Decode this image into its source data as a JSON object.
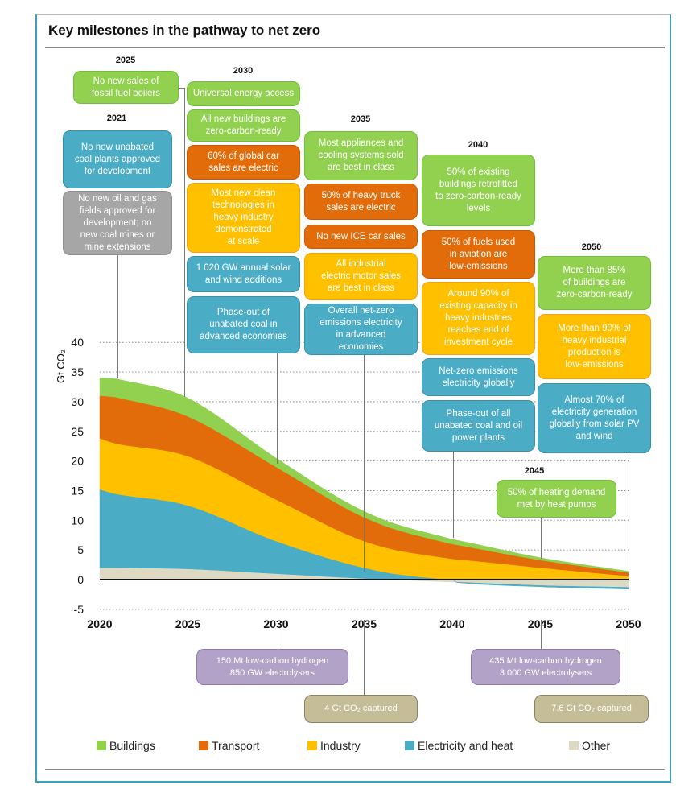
{
  "title": "Key milestones in the pathway to net zero",
  "milestones": {
    "y2021": {
      "year": "2021",
      "items": [
        "No new unabated\ncoal plants approved\nfor development",
        "No new oil and gas\nfields approved for\ndevelopment; no\nnew coal mines or\nmine extensions"
      ]
    },
    "y2025": {
      "year": "2025",
      "items": [
        "No new sales of\nfossil fuel boilers"
      ]
    },
    "y2030": {
      "year": "2030",
      "items": [
        "Universal energy access",
        "All new buildings are\nzero-carbon-ready",
        "60% of global car\nsales are electric",
        "Most new clean\ntechnologies in\nheavy industry\ndemonstrated\nat scale",
        "1 020 GW annual solar\nand wind additions",
        "Phase-out of\nunabated coal in\nadvanced economies"
      ]
    },
    "y2035": {
      "year": "2035",
      "items": [
        "Most appliances and\ncooling systems sold\nare best in class",
        "50% of heavy truck\nsales are electric",
        "No new ICE car sales",
        "All industrial\nelectric motor sales\nare best in class",
        "Overall net-zero\nemissions electricity\nin advanced\neconomies"
      ]
    },
    "y2040": {
      "year": "2040",
      "items": [
        "50% of existing\nbuildings retrofitted\nto zero-carbon-ready\nlevels",
        "50% of fuels used\nin aviation are\nlow-emissions",
        "Around 90% of\nexisting capacity in\nheavy industries\nreaches end of\ninvestment cycle",
        "Net-zero emissions\nelectricity globally",
        "Phase-out of all\nunabated coal and oil\npower plants"
      ]
    },
    "y2045": {
      "year": "2045",
      "items": [
        "50% of heating demand\nmet by heat pumps"
      ]
    },
    "y2050": {
      "year": "2050",
      "items": [
        "More than 85%\nof buildings are\nzero-carbon-ready",
        "More than 90% of\nheavy industrial\nproduction is\nlow-emissions",
        "Almost 70% of\nelectricity generation\nglobally from solar PV\nand wind"
      ]
    },
    "below": [
      "150 Mt low-carbon hydrogen\n850 GW electrolysers",
      "4 Gt CO₂ captured",
      "435 Mt low-carbon hydrogen\n3 000 GW electrolysers",
      "7.6 Gt CO₂ captured"
    ]
  },
  "colors": {
    "buildings": "#92d050",
    "transport": "#e36c0a",
    "industry": "#ffc000",
    "electricity": "#4bacc6",
    "other": "#ddd9c3",
    "fossil": "#a6a6a6",
    "hydrogen": "#b3a2c7",
    "ccus": "#c4bd97"
  },
  "chart_data": {
    "type": "area",
    "stacked": true,
    "ylabel": "Gt CO₂",
    "ylim": [
      -5,
      40
    ],
    "yticks": [
      "-5",
      "0",
      "5",
      "10",
      "15",
      "20",
      "25",
      "30",
      "35",
      "40"
    ],
    "xticks": [
      "2020",
      "2025",
      "2030",
      "2035",
      "2040",
      "2045",
      "2050"
    ],
    "grid": true,
    "legend_position": "bottom",
    "x": [
      2020,
      2021,
      2025,
      2030,
      2035,
      2040,
      2045,
      2050
    ],
    "series": [
      {
        "name": "Other",
        "color": "#ddd9c3",
        "values": [
          2.0,
          2.0,
          1.8,
          1.0,
          0.2,
          -0.4,
          -1.0,
          -1.3
        ]
      },
      {
        "name": "Electricity and heat",
        "color": "#4bacc6",
        "values": [
          13.2,
          12.4,
          10.7,
          5.5,
          1.8,
          0.0,
          -0.2,
          -0.3
        ]
      },
      {
        "name": "Industry",
        "color": "#ffc000",
        "values": [
          8.6,
          8.5,
          8.3,
          7.0,
          4.5,
          3.5,
          2.0,
          0.6
        ]
      },
      {
        "name": "Transport",
        "color": "#e36c0a",
        "values": [
          7.2,
          7.8,
          6.7,
          5.5,
          4.0,
          2.5,
          1.3,
          0.6
        ]
      },
      {
        "name": "Buildings",
        "color": "#92d050",
        "values": [
          3.0,
          3.1,
          3.1,
          1.5,
          1.0,
          0.8,
          0.4,
          0.2
        ]
      }
    ]
  },
  "legend": [
    "Buildings",
    "Transport",
    "Industry",
    "Electricity and heat",
    "Other"
  ]
}
